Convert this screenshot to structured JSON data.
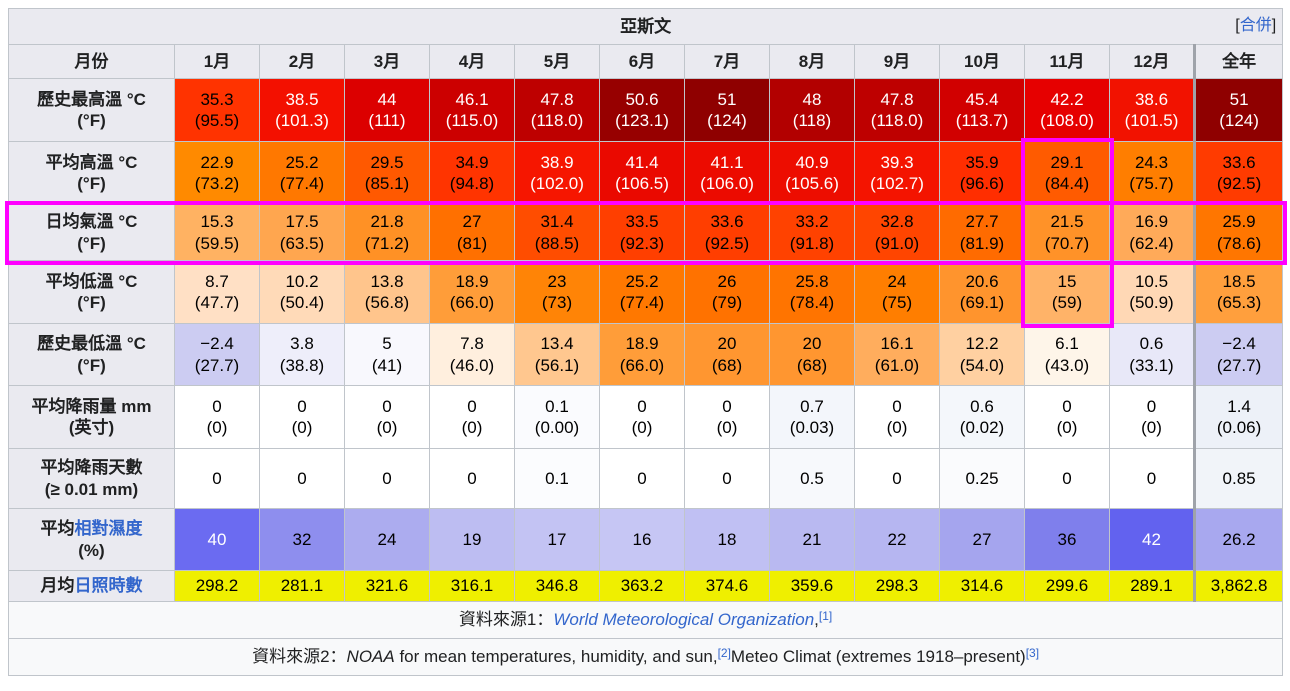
{
  "table": {
    "title": "亞斯文",
    "merge": {
      "open": "[",
      "label": "合併",
      "close": "]"
    },
    "month_label": "月份",
    "months": [
      "1月",
      "2月",
      "3月",
      "4月",
      "5月",
      "6月",
      "7月",
      "8月",
      "9月",
      "10月",
      "11月",
      "12月"
    ],
    "annual_label": "全年",
    "highlight_color": "#FF00FF",
    "rows": [
      {
        "key": "record-high",
        "label1": "歷史最高溫 °C",
        "label2": "(°F)",
        "cells": [
          {
            "t": "35.3",
            "b": "(95.5)",
            "bg": "#FF3300"
          },
          {
            "t": "38.5",
            "b": "(101.3)",
            "bg": "#F31000",
            "fg": "#FFFFFF"
          },
          {
            "t": "44",
            "b": "(111)",
            "bg": "#DC0000",
            "fg": "#FFFFFF"
          },
          {
            "t": "46.1",
            "b": "(115.0)",
            "bg": "#CC0000",
            "fg": "#FFFFFF"
          },
          {
            "t": "47.8",
            "b": "(118.0)",
            "bg": "#BE0000",
            "fg": "#FFFFFF"
          },
          {
            "t": "50.6",
            "b": "(123.1)",
            "bg": "#970000",
            "fg": "#FFFFFF"
          },
          {
            "t": "51",
            "b": "(124)",
            "bg": "#8F0000",
            "fg": "#FFFFFF"
          },
          {
            "t": "48",
            "b": "(118)",
            "bg": "#B20000",
            "fg": "#FFFFFF"
          },
          {
            "t": "47.8",
            "b": "(118.0)",
            "bg": "#BE0000",
            "fg": "#FFFFFF"
          },
          {
            "t": "45.4",
            "b": "(113.7)",
            "bg": "#D10000",
            "fg": "#FFFFFF"
          },
          {
            "t": "42.2",
            "b": "(108.0)",
            "bg": "#E60000",
            "fg": "#FFFFFF"
          },
          {
            "t": "38.6",
            "b": "(101.5)",
            "bg": "#F21200",
            "fg": "#FFFFFF"
          },
          {
            "t": "51",
            "b": "(124)",
            "bg": "#8F0000",
            "fg": "#FFFFFF"
          }
        ]
      },
      {
        "key": "mean-max",
        "label1": "平均高溫 °C",
        "label2": "(°F)",
        "cells": [
          {
            "t": "22.9",
            "b": "(73.2)",
            "bg": "#FF8A00"
          },
          {
            "t": "25.2",
            "b": "(77.4)",
            "bg": "#FF7800"
          },
          {
            "t": "29.5",
            "b": "(85.1)",
            "bg": "#FF5900"
          },
          {
            "t": "34.9",
            "b": "(94.8)",
            "bg": "#FF3400"
          },
          {
            "t": "38.9",
            "b": "(102.0)",
            "bg": "#F61600",
            "fg": "#FFFFFF"
          },
          {
            "t": "41.4",
            "b": "(106.5)",
            "bg": "#EA0900",
            "fg": "#FFFFFF"
          },
          {
            "t": "41.1",
            "b": "(106.0)",
            "bg": "#EC0B00",
            "fg": "#FFFFFF"
          },
          {
            "t": "40.9",
            "b": "(105.6)",
            "bg": "#ED0D00",
            "fg": "#FFFFFF"
          },
          {
            "t": "39.3",
            "b": "(102.7)",
            "bg": "#F41400",
            "fg": "#FFFFFF"
          },
          {
            "t": "35.9",
            "b": "(96.6)",
            "bg": "#FF2E00"
          },
          {
            "t": "29.1",
            "b": "(84.4)",
            "bg": "#FF5B00"
          },
          {
            "t": "24.3",
            "b": "(75.7)",
            "bg": "#FF7E00"
          },
          {
            "t": "33.6",
            "b": "(92.5)",
            "bg": "#FF3B00"
          }
        ]
      },
      {
        "key": "daily-mean",
        "label1": "日均氣溫 °C",
        "label2": "(°F)",
        "cells": [
          {
            "t": "15.3",
            "b": "(59.5)",
            "bg": "#FFB262"
          },
          {
            "t": "17.5",
            "b": "(63.5)",
            "bg": "#FFA64F"
          },
          {
            "t": "21.8",
            "b": "(71.2)",
            "bg": "#FF9125"
          },
          {
            "t": "27",
            "b": "(81)",
            "bg": "#FF7000"
          },
          {
            "t": "31.4",
            "b": "(88.5)",
            "bg": "#FF4D00"
          },
          {
            "t": "33.5",
            "b": "(92.3)",
            "bg": "#FF3F00"
          },
          {
            "t": "33.6",
            "b": "(92.5)",
            "bg": "#FF3E00"
          },
          {
            "t": "33.2",
            "b": "(91.8)",
            "bg": "#FF4200"
          },
          {
            "t": "32.8",
            "b": "(91.0)",
            "bg": "#FF4500"
          },
          {
            "t": "27.7",
            "b": "(81.9)",
            "bg": "#FF6B00"
          },
          {
            "t": "21.5",
            "b": "(70.7)",
            "bg": "#FF9228"
          },
          {
            "t": "16.9",
            "b": "(62.4)",
            "bg": "#FFAA59"
          },
          {
            "t": "25.9",
            "b": "(78.6)",
            "bg": "#FF7600"
          }
        ]
      },
      {
        "key": "mean-min",
        "label1": "平均低溫 °C",
        "label2": "(°F)",
        "cells": [
          {
            "t": "8.7",
            "b": "(47.7)",
            "bg": "#FFE0C5"
          },
          {
            "t": "10.2",
            "b": "(50.4)",
            "bg": "#FFDAB8"
          },
          {
            "t": "13.8",
            "b": "(56.8)",
            "bg": "#FFC58C"
          },
          {
            "t": "18.9",
            "b": "(66.0)",
            "bg": "#FF9D39"
          },
          {
            "t": "23",
            "b": "(73)",
            "bg": "#FF8406"
          },
          {
            "t": "25.2",
            "b": "(77.4)",
            "bg": "#FF7800"
          },
          {
            "t": "26",
            "b": "(79)",
            "bg": "#FF7200"
          },
          {
            "t": "25.8",
            "b": "(78.4)",
            "bg": "#FF7400"
          },
          {
            "t": "24",
            "b": "(75)",
            "bg": "#FF7E00"
          },
          {
            "t": "20.6",
            "b": "(69.1)",
            "bg": "#FF942D"
          },
          {
            "t": "15",
            "b": "(59)",
            "bg": "#FFB368"
          },
          {
            "t": "10.5",
            "b": "(50.9)",
            "bg": "#FFD8B5"
          },
          {
            "t": "18.5",
            "b": "(65.3)",
            "bg": "#FF9F3D"
          }
        ]
      },
      {
        "key": "record-low",
        "label1": "歷史最低溫 °C",
        "label2": "(°F)",
        "cells": [
          {
            "t": "−2.4",
            "b": "(27.7)",
            "bg": "#CCCCF2"
          },
          {
            "t": "3.8",
            "b": "(38.8)",
            "bg": "#EEEEFA"
          },
          {
            "t": "5",
            "b": "(41)",
            "bg": "#F8F8FD"
          },
          {
            "t": "7.8",
            "b": "(46.0)",
            "bg": "#FFEFDE"
          },
          {
            "t": "13.4",
            "b": "(56.1)",
            "bg": "#FFC78F"
          },
          {
            "t": "18.9",
            "b": "(66.0)",
            "bg": "#FF9D39"
          },
          {
            "t": "20",
            "b": "(68)",
            "bg": "#FF9630"
          },
          {
            "t": "20",
            "b": "(68)",
            "bg": "#FF9630"
          },
          {
            "t": "16.1",
            "b": "(61.0)",
            "bg": "#FFAD5D"
          },
          {
            "t": "12.2",
            "b": "(54.0)",
            "bg": "#FFD0A1"
          },
          {
            "t": "6.1",
            "b": "(43.0)",
            "bg": "#FEF5E9"
          },
          {
            "t": "0.6",
            "b": "(33.1)",
            "bg": "#E8E8F8"
          },
          {
            "t": "−2.4",
            "b": "(27.7)",
            "bg": "#CCCCF2"
          }
        ]
      },
      {
        "key": "precip-mm",
        "label1": "平均降雨量 mm",
        "label2": "(英寸)",
        "cells": [
          {
            "t": "0",
            "b": "(0)",
            "bg": "#FFFFFF"
          },
          {
            "t": "0",
            "b": "(0)",
            "bg": "#FFFFFF"
          },
          {
            "t": "0",
            "b": "(0)",
            "bg": "#FFFFFF"
          },
          {
            "t": "0",
            "b": "(0)",
            "bg": "#FFFFFF"
          },
          {
            "t": "0.1",
            "b": "(0.00)",
            "bg": "#FAFBFE"
          },
          {
            "t": "0",
            "b": "(0)",
            "bg": "#FFFFFF"
          },
          {
            "t": "0",
            "b": "(0)",
            "bg": "#FFFFFF"
          },
          {
            "t": "0.7",
            "b": "(0.03)",
            "bg": "#F3F6FB"
          },
          {
            "t": "0",
            "b": "(0)",
            "bg": "#FFFFFF"
          },
          {
            "t": "0.6",
            "b": "(0.02)",
            "bg": "#F4F7FB"
          },
          {
            "t": "0",
            "b": "(0)",
            "bg": "#FFFFFF"
          },
          {
            "t": "0",
            "b": "(0)",
            "bg": "#FFFFFF"
          },
          {
            "t": "1.4",
            "b": "(0.06)",
            "bg": "#EDF1F8"
          }
        ]
      },
      {
        "key": "precip-days",
        "label1": "平均降雨天數",
        "label2": "(≥ 0.01 mm)",
        "cells": [
          {
            "t": "0",
            "bg": "#FFFFFF"
          },
          {
            "t": "0",
            "bg": "#FFFFFF"
          },
          {
            "t": "0",
            "bg": "#FFFFFF"
          },
          {
            "t": "0",
            "bg": "#FFFFFF"
          },
          {
            "t": "0.1",
            "bg": "#FBFCFE"
          },
          {
            "t": "0",
            "bg": "#FFFFFF"
          },
          {
            "t": "0",
            "bg": "#FFFFFF"
          },
          {
            "t": "0.5",
            "bg": "#F7F9FC"
          },
          {
            "t": "0",
            "bg": "#FFFFFF"
          },
          {
            "t": "0.25",
            "bg": "#FAFBFD"
          },
          {
            "t": "0",
            "bg": "#FFFFFF"
          },
          {
            "t": "0",
            "bg": "#FFFFFF"
          },
          {
            "t": "0.85",
            "bg": "#F1F4F9"
          }
        ]
      },
      {
        "key": "humidity",
        "label1_parts": [
          {
            "t": "平均"
          },
          {
            "t": "相對濕度",
            "link": true
          }
        ],
        "label2": "(%)",
        "cells": [
          {
            "t": "40",
            "bg": "#6B6BF1",
            "fg": "#FFFFFF"
          },
          {
            "t": "32",
            "bg": "#8E8EEE"
          },
          {
            "t": "24",
            "bg": "#ACACEF"
          },
          {
            "t": "19",
            "bg": "#BDBDF2"
          },
          {
            "t": "17",
            "bg": "#C3C3F3"
          },
          {
            "t": "16",
            "bg": "#C6C6F4"
          },
          {
            "t": "18",
            "bg": "#C0C0F3"
          },
          {
            "t": "21",
            "bg": "#B9B9F1"
          },
          {
            "t": "22",
            "bg": "#B6B6F1"
          },
          {
            "t": "27",
            "bg": "#A5A5EE"
          },
          {
            "t": "36",
            "bg": "#7F7FEC"
          },
          {
            "t": "42",
            "bg": "#6262EF",
            "fg": "#FFFFFF"
          },
          {
            "t": "26.2",
            "bg": "#A8A8EF"
          }
        ]
      },
      {
        "key": "sunshine",
        "label1_parts": [
          {
            "t": "月均"
          },
          {
            "t": "日照時數",
            "link": true
          }
        ],
        "cells": [
          {
            "t": "298.2",
            "bg": "#EFEF00"
          },
          {
            "t": "281.1",
            "bg": "#EFEF00"
          },
          {
            "t": "321.6",
            "bg": "#EFEF00"
          },
          {
            "t": "316.1",
            "bg": "#EFEF00"
          },
          {
            "t": "346.8",
            "bg": "#EFEF00"
          },
          {
            "t": "363.2",
            "bg": "#EFEF00"
          },
          {
            "t": "374.6",
            "bg": "#EFEF00"
          },
          {
            "t": "359.6",
            "bg": "#EFEF00"
          },
          {
            "t": "298.3",
            "bg": "#EFEF00"
          },
          {
            "t": "314.6",
            "bg": "#EFEF00"
          },
          {
            "t": "299.6",
            "bg": "#EFEF00"
          },
          {
            "t": "289.1",
            "bg": "#EFEF00"
          },
          {
            "t": "3,862.8",
            "bg": "#EFEF00"
          }
        ]
      }
    ]
  },
  "footnotes": [
    {
      "prefix": "資料來源1：",
      "link_text": "World Meteorological Organization",
      "after": ",",
      "ref": "[1]"
    },
    {
      "prefix": "資料來源2：",
      "italic_text": "NOAA",
      "text": " for mean temperatures, humidity, and sun,",
      "ref": "[2]",
      "text2": "Meteo Climat (extremes 1918–present)",
      "ref2": "[3]"
    }
  ]
}
